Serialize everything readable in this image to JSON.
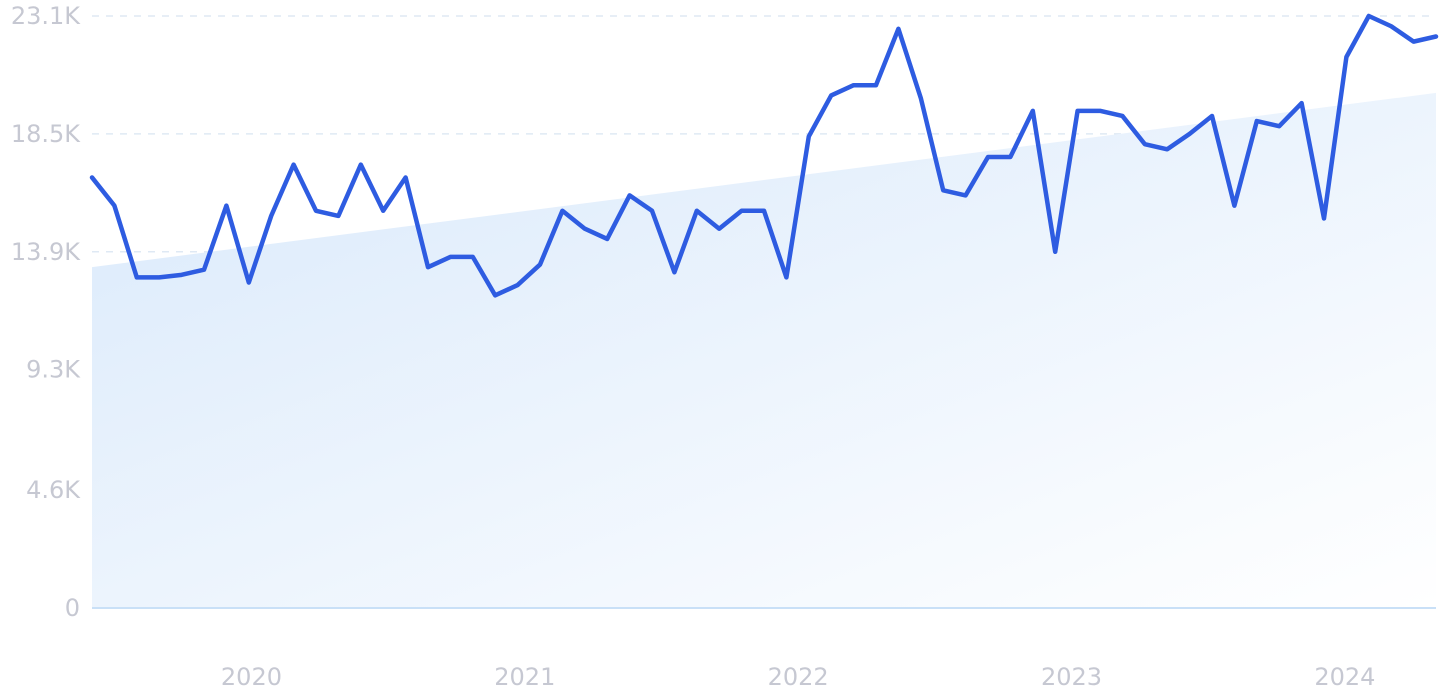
{
  "colors": {
    "line": "#2e5ce1",
    "trend_fill_start": "#d9e9fb",
    "trend_fill_end": "#ffffff",
    "grid": "#dfe9f4",
    "tick_text": "#c6c8d2"
  },
  "chart_data": {
    "type": "line",
    "title": "",
    "xlabel": "",
    "ylabel": "",
    "x_tick_labels": [
      "2020",
      "2021",
      "2022",
      "2023",
      "2024"
    ],
    "y_tick_labels": [
      "0",
      "4.6K",
      "9.3K",
      "13.9K",
      "18.5K",
      "23.1K"
    ],
    "y_tick_values": [
      0,
      4600,
      9300,
      13900,
      18500,
      23100
    ],
    "ylim": [
      0,
      23100
    ],
    "x_start": "2019-06",
    "x_end": "2024-05",
    "grid": true,
    "legend": "none",
    "series": [
      {
        "values": [
          16800,
          15700,
          12900,
          12900,
          13000,
          13200,
          15700,
          12700,
          15300,
          17300,
          15500,
          15300,
          17300,
          15500,
          16800,
          13300,
          13700,
          13700,
          12200,
          12600,
          13400,
          15500,
          14800,
          14400,
          16100,
          15500,
          13100,
          15500,
          14800,
          15500,
          15500,
          12900,
          18400,
          20000,
          20400,
          20400,
          22600,
          19900,
          16300,
          16100,
          17600,
          17600,
          19400,
          13900,
          19400,
          19400,
          19200,
          18100,
          17900,
          18500,
          19200,
          15700,
          19000,
          18800,
          19700,
          15200,
          21500,
          23100,
          22700,
          22100,
          22300
        ]
      }
    ],
    "trend": {
      "start_value": 13300,
      "end_value": 20100
    }
  }
}
